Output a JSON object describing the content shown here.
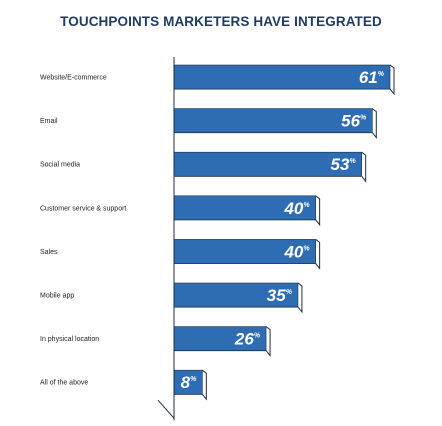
{
  "chart_data": {
    "type": "bar",
    "orientation": "horizontal",
    "title": "TOUCHPOINTS MARKETERS HAVE INTEGRATED",
    "xlabel": "",
    "ylabel": "",
    "value_suffix": "%",
    "xlim": [
      0,
      61
    ],
    "grid": false,
    "legend": "none",
    "categories": [
      "Website/E-commerce",
      "Email",
      "Social media",
      "Customer service & support",
      "Sales",
      "Mobile app",
      "In physical location",
      "All of the above"
    ],
    "values": [
      61,
      56,
      53,
      40,
      40,
      35,
      26,
      8
    ],
    "colors": {
      "bar": "#2e6db4",
      "bar_outline": "#1b2e45",
      "label": "#ffffff",
      "title": "#1f3b5e"
    }
  }
}
